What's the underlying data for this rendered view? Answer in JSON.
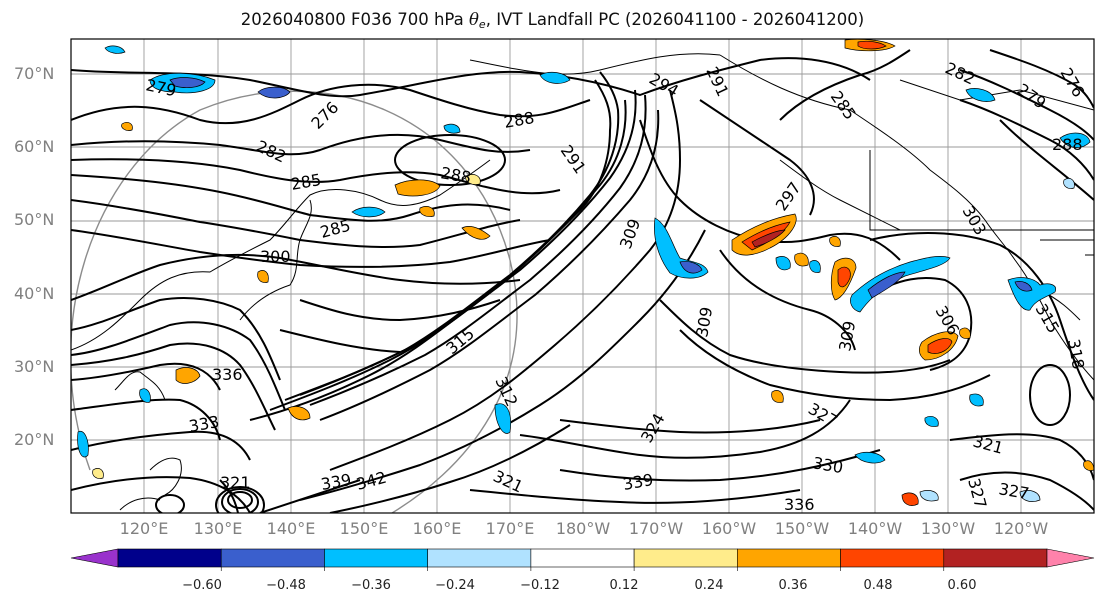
{
  "title": {
    "prefix": "2026040800 F036 700 hPa ",
    "theta": "θ",
    "theta_sub": "e",
    "suffix": ", IVT Landfall PC (2026041100 - 2026041200)"
  },
  "map": {
    "lat_labels": [
      "70°N",
      "60°N",
      "50°N",
      "40°N",
      "30°N",
      "20°N"
    ],
    "lon_labels": [
      "120°E",
      "130°E",
      "140°E",
      "150°E",
      "160°E",
      "170°E",
      "180°W",
      "170°W",
      "160°W",
      "150°W",
      "140°W",
      "130°W",
      "120°W"
    ],
    "contour_labels": [
      "279",
      "276",
      "282",
      "285",
      "288",
      "288",
      "285",
      "300",
      "291",
      "294",
      "291",
      "285",
      "282",
      "279",
      "276",
      "288",
      "297",
      "309",
      "303",
      "309",
      "306",
      "309",
      "315",
      "318",
      "315",
      "312",
      "327",
      "330",
      "336",
      "339",
      "342",
      "339",
      "321",
      "321",
      "327",
      "324",
      "333",
      "336",
      "321",
      "327"
    ],
    "contour_color": "#000000",
    "coast_color": "#000000",
    "grid_color": "#9a9a9a"
  },
  "colorbar": {
    "colors": [
      "#9932cc",
      "#00008b",
      "#3a5fcd",
      "#00bfff",
      "#b0e2ff",
      "#ffffff",
      "#ffec8b",
      "#ffa500",
      "#ff4500",
      "#b22222",
      "#ff82ab"
    ],
    "ticks": [
      "−0.60",
      "−0.48",
      "−0.36",
      "−0.24",
      "−0.12",
      "0.12",
      "0.24",
      "0.36",
      "0.48",
      "0.60"
    ]
  }
}
